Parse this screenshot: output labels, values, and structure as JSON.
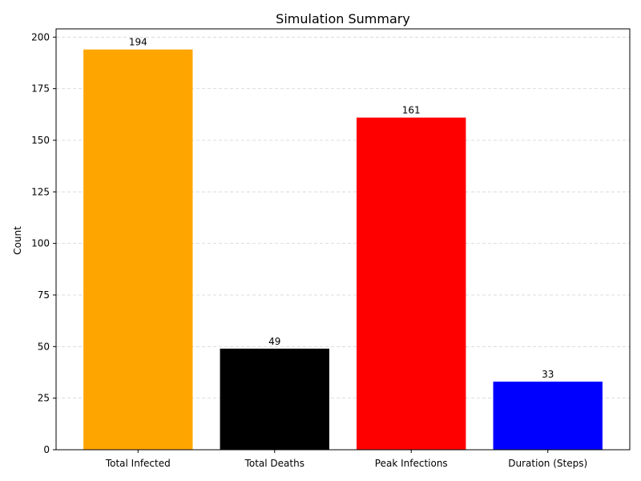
{
  "chart_data": {
    "type": "bar",
    "title": "Simulation Summary",
    "xlabel": "",
    "ylabel": "Count",
    "categories": [
      "Total Infected",
      "Total Deaths",
      "Peak Infections",
      "Duration (Steps)"
    ],
    "values": [
      194,
      49,
      161,
      33
    ],
    "data_labels": [
      "194",
      "49",
      "161",
      "33"
    ],
    "colors": [
      "#ffa500",
      "#000000",
      "#ff0000",
      "#0000ff"
    ],
    "ylim": [
      0,
      204
    ],
    "yticks": [
      0,
      25,
      50,
      75,
      100,
      125,
      150,
      175,
      200
    ],
    "ytick_labels": [
      "0",
      "25",
      "50",
      "75",
      "100",
      "125",
      "150",
      "175",
      "200"
    ],
    "grid": "y-dashed",
    "legend": "none"
  }
}
